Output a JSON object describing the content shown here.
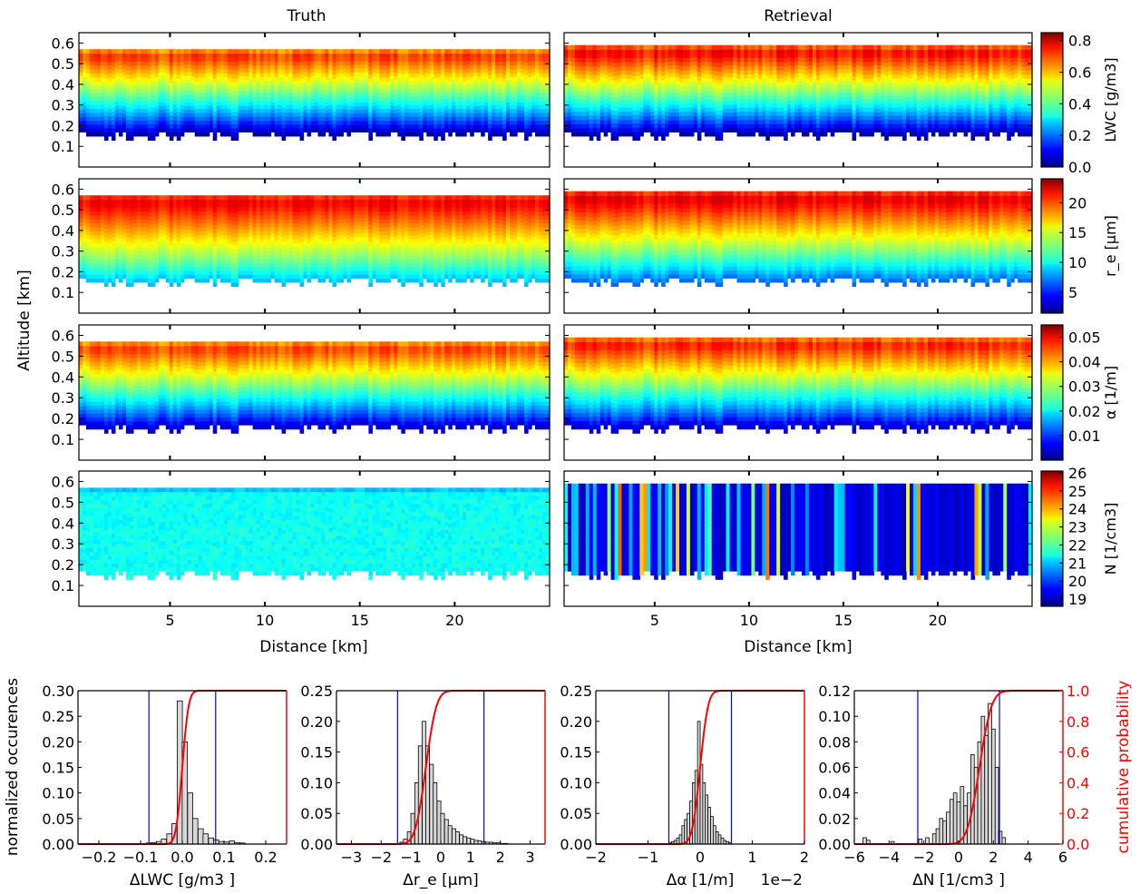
{
  "figure": {
    "column_titles": [
      "Truth",
      "Retrieval"
    ],
    "shared_ylabel": "Altitude [km]",
    "shared_xlabel": "Distance [km]",
    "hist_ylabel_left": "normalized occurences",
    "hist_ylabel_right": "cumulative probability"
  },
  "chart_data": [
    {
      "type": "heatmap",
      "grid": "off",
      "x": {
        "label": "Distance [km]",
        "range": [
          0.2,
          25
        ],
        "ticks": [
          5,
          10,
          15,
          20
        ]
      },
      "y": {
        "label": "Altitude [km]",
        "range": [
          0.0,
          0.65
        ],
        "ticks": [
          0.1,
          0.2,
          0.3,
          0.4,
          0.5,
          0.6
        ]
      },
      "colormap": "jet",
      "columns": [
        "Truth",
        "Retrieval"
      ],
      "rows": [
        {
          "variable": "LWC",
          "cbar_label": "LWC [g/m3]",
          "cbar_range": [
            0.0,
            0.85
          ],
          "cbar_ticks": [
            "0.0",
            "0.2",
            "0.4",
            "0.6",
            "0.8"
          ],
          "truth": {
            "cloud_base_km": 0.15,
            "cloud_top_km": 0.57,
            "value_at_base": 0.0,
            "value_near_top": 0.75
          },
          "retrieval": {
            "cloud_base_km": 0.15,
            "cloud_top_km": 0.59,
            "value_at_base": 0.0,
            "value_near_top": 0.8
          }
        },
        {
          "variable": "re",
          "cbar_label": "r_e [μm]",
          "cbar_range": [
            1.5,
            24
          ],
          "cbar_ticks": [
            "5",
            "10",
            "15",
            "20"
          ],
          "truth": {
            "cloud_base_km": 0.15,
            "cloud_top_km": 0.57,
            "value_at_base": 8,
            "value_near_top": 22.5
          },
          "retrieval": {
            "cloud_base_km": 0.15,
            "cloud_top_km": 0.59,
            "value_at_base": 6,
            "value_near_top": 23
          }
        },
        {
          "variable": "alpha",
          "cbar_label": "α [1/m]",
          "cbar_range": [
            0.0,
            0.055
          ],
          "cbar_ticks": [
            "0.01",
            "0.02",
            "0.03",
            "0.04",
            "0.05"
          ],
          "truth": {
            "cloud_base_km": 0.15,
            "cloud_top_km": 0.57,
            "value_at_base": 0.002,
            "value_near_top": 0.048
          },
          "retrieval": {
            "cloud_base_km": 0.15,
            "cloud_top_km": 0.59,
            "value_at_base": 0.002,
            "value_near_top": 0.05
          }
        },
        {
          "variable": "N",
          "cbar_label": "N [1/cm3]",
          "cbar_range": [
            18.6,
            26.1
          ],
          "cbar_ticks": [
            "19",
            "20",
            "21",
            "22",
            "23",
            "24",
            "25",
            "26"
          ],
          "truth": {
            "cloud_base_km": 0.15,
            "cloud_top_km": 0.57,
            "value_typical": 21.5
          },
          "retrieval": {
            "cloud_base_km": 0.15,
            "cloud_top_km": 0.59,
            "value_typical": 19.3
          }
        }
      ]
    },
    {
      "type": "bar",
      "subtype": "histogram_with_cdf",
      "xlabel": "ΔLWC [g/m3 ]",
      "xlim": [
        -0.25,
        0.25
      ],
      "xticks": [
        "−0.2",
        "−0.1",
        "0.0",
        "0.1",
        "0.2"
      ],
      "ylim": [
        0,
        0.3
      ],
      "yticks": [
        "0.00",
        "0.05",
        "0.10",
        "0.15",
        "0.20",
        "0.25",
        "0.30"
      ],
      "bin_width": 0.0125,
      "bin_centers": [
        -0.081,
        -0.069,
        -0.056,
        -0.044,
        -0.031,
        -0.019,
        -0.006,
        0.006,
        0.019,
        0.031,
        0.044,
        0.056,
        0.069,
        0.081,
        0.094,
        0.106,
        0.119,
        0.131,
        0.144
      ],
      "values": [
        0.002,
        0.003,
        0.005,
        0.01,
        0.02,
        0.04,
        0.28,
        0.2,
        0.1,
        0.05,
        0.03,
        0.02,
        0.012,
        0.008,
        0.005,
        0.004,
        0.006,
        0.003,
        0.002
      ],
      "vlines": [
        -0.08,
        0.08
      ],
      "cdf_center": 0.0,
      "cdf_scale": 0.012,
      "cdf_ylim": [
        0,
        1.0
      ]
    },
    {
      "type": "bar",
      "subtype": "histogram_with_cdf",
      "xlabel": "Δr_e [μm]",
      "xlim": [
        -3.5,
        3.5
      ],
      "xticks": [
        "−3",
        "−2",
        "−1",
        "0",
        "1",
        "2",
        "3"
      ],
      "ylim": [
        0,
        0.25
      ],
      "yticks": [
        "0.00",
        "0.05",
        "0.10",
        "0.15",
        "0.20",
        "0.25"
      ],
      "bin_width": 0.125,
      "bin_centers": [
        -1.31,
        -1.19,
        -1.06,
        -0.94,
        -0.81,
        -0.69,
        -0.56,
        -0.44,
        -0.31,
        -0.19,
        -0.06,
        0.06,
        0.19,
        0.31,
        0.44,
        0.56,
        0.69,
        0.81,
        0.94,
        1.06,
        1.19,
        1.31,
        1.44,
        1.56,
        1.69,
        1.81,
        1.94,
        2.06,
        2.19
      ],
      "values": [
        0.003,
        0.008,
        0.02,
        0.05,
        0.1,
        0.16,
        0.2,
        0.16,
        0.13,
        0.1,
        0.07,
        0.05,
        0.04,
        0.03,
        0.025,
        0.02,
        0.015,
        0.012,
        0.01,
        0.008,
        0.006,
        0.005,
        0.004,
        0.003,
        0.003,
        0.002,
        0.002,
        0.001,
        0.001
      ],
      "vlines": [
        -1.45,
        1.45
      ],
      "cdf_center": -0.5,
      "cdf_scale": 0.28,
      "cdf_ylim": [
        0,
        1.0
      ]
    },
    {
      "type": "bar",
      "subtype": "histogram_with_cdf",
      "xlabel": "Δα [1/m]",
      "x_multiplier": "1e−2",
      "xlim": [
        -2,
        2
      ],
      "xticks": [
        "−2",
        "−1",
        "0",
        "1",
        "2"
      ],
      "ylim": [
        0,
        0.25
      ],
      "yticks": [
        "0.00",
        "0.05",
        "0.10",
        "0.15",
        "0.20",
        "0.25"
      ],
      "bin_width": 0.05,
      "bin_centers": [
        -0.575,
        -0.525,
        -0.475,
        -0.425,
        -0.375,
        -0.325,
        -0.275,
        -0.225,
        -0.175,
        -0.125,
        -0.075,
        -0.025,
        0.025,
        0.075,
        0.125,
        0.175,
        0.225,
        0.275,
        0.325,
        0.375,
        0.425,
        0.475,
        0.525,
        0.575
      ],
      "values": [
        0.002,
        0.004,
        0.006,
        0.01,
        0.015,
        0.03,
        0.04,
        0.05,
        0.07,
        0.1,
        0.12,
        0.2,
        0.13,
        0.1,
        0.08,
        0.06,
        0.045,
        0.03,
        0.02,
        0.015,
        0.01,
        0.006,
        0.004,
        0.002
      ],
      "vlines": [
        -0.6,
        0.6
      ],
      "cdf_center": 0.0,
      "cdf_scale": 0.12,
      "cdf_ylim": [
        0,
        1.0
      ]
    },
    {
      "type": "bar",
      "subtype": "histogram_with_cdf",
      "xlabel": "ΔN [1/cm3 ]",
      "xlim": [
        -6,
        6
      ],
      "xticks": [
        "−6",
        "−4",
        "−2",
        "0",
        "2",
        "4",
        "6"
      ],
      "ylim": [
        0,
        0.12
      ],
      "yticks": [
        "0.00",
        "0.02",
        "0.04",
        "0.06",
        "0.08",
        "0.10",
        "0.12"
      ],
      "y2ticks": [
        "0.0",
        "0.2",
        "0.4",
        "0.6",
        "0.8",
        "1.0"
      ],
      "bin_width": 0.2,
      "bin_centers": [
        -5.4,
        -5.2,
        -3.8,
        -2.2,
        -1.8,
        -1.4,
        -1.2,
        -1.0,
        -0.8,
        -0.6,
        -0.4,
        -0.2,
        0.0,
        0.2,
        0.4,
        0.6,
        0.8,
        1.0,
        1.2,
        1.4,
        1.6,
        1.8,
        2.0,
        2.2,
        2.4,
        2.6
      ],
      "values": [
        0.005,
        0.003,
        0.002,
        0.004,
        0.005,
        0.008,
        0.012,
        0.02,
        0.018,
        0.025,
        0.035,
        0.04,
        0.033,
        0.045,
        0.03,
        0.04,
        0.07,
        0.06,
        0.08,
        0.1,
        0.085,
        0.11,
        0.09,
        0.06,
        0.01,
        0.005
      ],
      "vlines": [
        -2.35,
        2.35
      ],
      "cdf_center": 1.2,
      "cdf_scale": 0.55,
      "cdf_ylim": [
        0,
        1.0
      ]
    }
  ]
}
